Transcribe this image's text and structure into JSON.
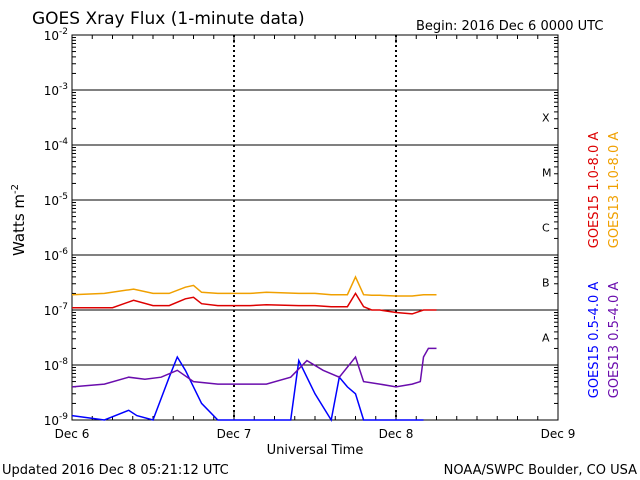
{
  "chart_data": {
    "type": "line",
    "title": "GOES Xray Flux (1-minute data)",
    "begin_label": "Begin:  2016 Dec 6 0000 UTC",
    "xlabel": "Universal Time",
    "ylabel": "Watts m",
    "ylabel_exponent": "-2",
    "y_scale": "log",
    "ylim": [
      1e-09,
      0.01
    ],
    "y_ticks": [
      {
        "base": "10",
        "exp": "-9"
      },
      {
        "base": "10",
        "exp": "-8"
      },
      {
        "base": "10",
        "exp": "-7"
      },
      {
        "base": "10",
        "exp": "-6"
      },
      {
        "base": "10",
        "exp": "-5"
      },
      {
        "base": "10",
        "exp": "-4"
      },
      {
        "base": "10",
        "exp": "-3"
      },
      {
        "base": "10",
        "exp": "-2"
      }
    ],
    "x_range_days": [
      "2016-12-06T00:00",
      "2016-12-09T00:00"
    ],
    "x_ticks": [
      "Dec 6",
      "Dec 7",
      "Dec 8",
      "Dec 9"
    ],
    "flare_classes": [
      "A",
      "B",
      "C",
      "M",
      "X"
    ],
    "legend": [
      {
        "label": "GOES15 1.0-8.0 A",
        "color": "#dd0000"
      },
      {
        "label": "GOES13 1.0-8.0 A",
        "color": "#f0a000"
      },
      {
        "label": "GOES15 0.5-4.0 A",
        "color": "#0000ff"
      },
      {
        "label": "GOES13 0.5-4.0 A",
        "color": "#6a0dad"
      }
    ],
    "series": [
      {
        "name": "GOES15 1.0-8.0 A",
        "color": "#dd0000",
        "x": [
          0,
          0.25,
          0.38,
          0.5,
          0.6,
          0.7,
          0.75,
          0.8,
          0.9,
          1.0,
          1.1,
          1.2,
          1.4,
          1.5,
          1.6,
          1.7,
          1.75,
          1.8,
          1.85,
          1.9,
          2.0,
          2.1,
          2.17,
          2.25
        ],
        "y": [
          1.1e-07,
          1.1e-07,
          1.5e-07,
          1.2e-07,
          1.2e-07,
          1.6e-07,
          1.7e-07,
          1.3e-07,
          1.2e-07,
          1.2e-07,
          1.2e-07,
          1.25e-07,
          1.2e-07,
          1.2e-07,
          1.15e-07,
          1.15e-07,
          2e-07,
          1.15e-07,
          1e-07,
          1e-07,
          9e-08,
          8.5e-08,
          1e-07,
          1e-07
        ]
      },
      {
        "name": "GOES13 1.0-8.0 A",
        "color": "#f0a000",
        "x": [
          0,
          0.2,
          0.38,
          0.5,
          0.6,
          0.7,
          0.75,
          0.8,
          0.9,
          1.0,
          1.1,
          1.2,
          1.4,
          1.5,
          1.6,
          1.7,
          1.75,
          1.8,
          1.85,
          1.9,
          2.0,
          2.1,
          2.17,
          2.25
        ],
        "y": [
          1.9e-07,
          2e-07,
          2.4e-07,
          2e-07,
          2e-07,
          2.6e-07,
          2.8e-07,
          2.1e-07,
          2e-07,
          2e-07,
          2e-07,
          2.1e-07,
          2e-07,
          2e-07,
          1.9e-07,
          1.9e-07,
          4e-07,
          1.9e-07,
          1.85e-07,
          1.85e-07,
          1.8e-07,
          1.8e-07,
          1.9e-07,
          1.9e-07
        ]
      },
      {
        "name": "GOES15 0.5-4.0 A",
        "color": "#0000ff",
        "x": [
          0,
          0.2,
          0.35,
          0.4,
          0.5,
          0.6,
          0.65,
          0.7,
          0.75,
          0.8,
          0.9,
          1.0,
          1.2,
          1.35,
          1.4,
          1.45,
          1.5,
          1.6,
          1.65,
          1.7,
          1.75,
          1.8,
          1.85,
          2.0,
          2.17
        ],
        "y": [
          1.2e-09,
          1e-09,
          1.5e-09,
          1.2e-09,
          1e-09,
          6e-09,
          1.4e-08,
          8e-09,
          4e-09,
          2e-09,
          1e-09,
          1e-09,
          1e-09,
          1e-09,
          1.2e-08,
          6e-09,
          3e-09,
          1e-09,
          6e-09,
          4e-09,
          3e-09,
          1e-09,
          1e-09,
          1e-09,
          1e-09
        ]
      },
      {
        "name": "GOES13 0.5-4.0 A",
        "color": "#6a0dad",
        "x": [
          0,
          0.2,
          0.35,
          0.45,
          0.55,
          0.65,
          0.75,
          0.9,
          1.0,
          1.2,
          1.35,
          1.45,
          1.55,
          1.65,
          1.75,
          1.8,
          1.9,
          2.0,
          2.1,
          2.15,
          2.17,
          2.2,
          2.25
        ],
        "y": [
          4e-09,
          4.5e-09,
          6e-09,
          5.5e-09,
          6e-09,
          8e-09,
          5e-09,
          4.5e-09,
          4.5e-09,
          4.5e-09,
          6e-09,
          1.2e-08,
          8e-09,
          6e-09,
          1.4e-08,
          5e-09,
          4.5e-09,
          4e-09,
          4.5e-09,
          5e-09,
          1.4e-08,
          2e-08,
          2e-08
        ]
      }
    ]
  },
  "footer": {
    "updated": "Updated 2016 Dec  8 05:21:12 UTC",
    "credit": "NOAA/SWPC Boulder, CO USA"
  }
}
